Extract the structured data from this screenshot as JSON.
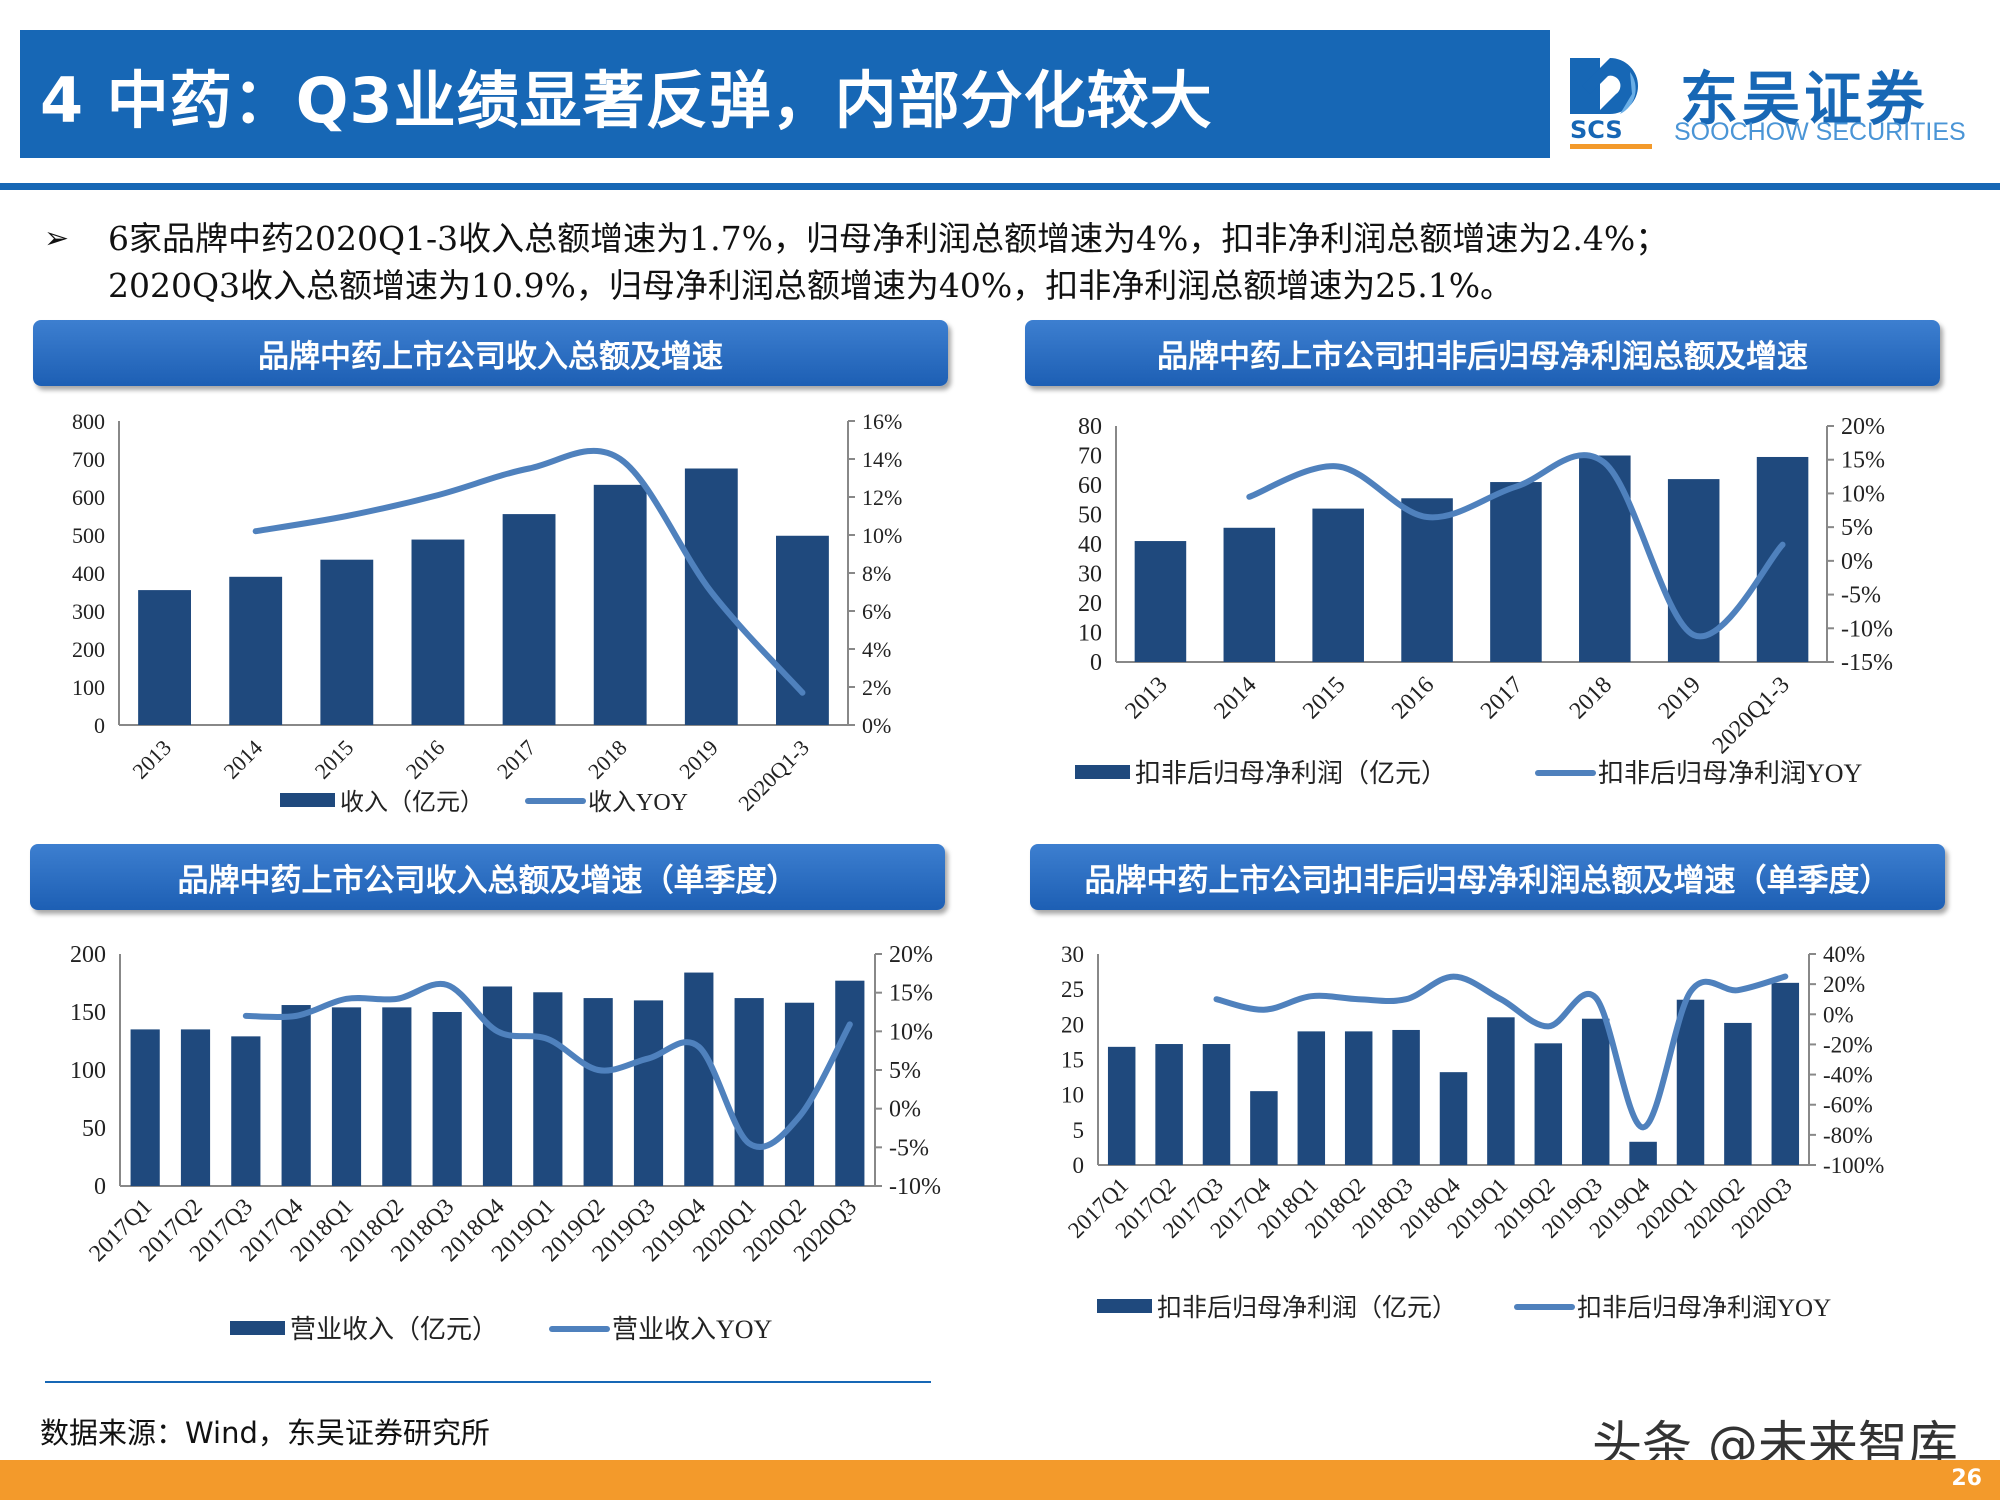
{
  "header": {
    "title": "4 中药：Q3业绩显著反弹，内部分化较大",
    "logo_cn": "东吴证券",
    "logo_en": "SOOCHOW SECURITIES",
    "logo_mark": "SCS",
    "color": "#1767b5"
  },
  "bullets": {
    "icon": "arrow-bullet-icon",
    "lines": [
      "6家品牌中药2020Q1-3收入总额增速为1.7%，归母净利润总额增速为4%，扣非净利润总额增速为2.4%；",
      "2020Q3收入总额增速为10.9%，归母净利润总额增速为40%，扣非净利润总额增速为25.1%。"
    ]
  },
  "chart_titles": [
    "品牌中药上市公司收入总额及增速",
    "品牌中药上市公司扣非后归母净利润总额及增速",
    "品牌中药上市公司收入总额及增速（单季度）",
    "品牌中药上市公司扣非后归母净利润总额及增速（单季度）"
  ],
  "colors": {
    "bar": "#1f497d",
    "line": "#4f81bd",
    "footer": "#f39a2b"
  },
  "chart_data": [
    {
      "type": "bar+line",
      "categories": [
        "2013",
        "2014",
        "2015",
        "2016",
        "2017",
        "2018",
        "2019",
        "2020Q1-3"
      ],
      "series": [
        {
          "name": "收入（亿元）",
          "type": "bar",
          "axis": "left",
          "values": [
            355,
            390,
            435,
            488,
            555,
            632,
            675,
            498
          ]
        },
        {
          "name": "收入YOY",
          "type": "line",
          "axis": "right",
          "values": [
            null,
            10.2,
            11.0,
            12.1,
            13.5,
            14.0,
            7.0,
            1.7
          ]
        }
      ],
      "ylim_left": [
        0,
        800
      ],
      "yticks_left": [
        "0",
        "100",
        "200",
        "300",
        "400",
        "500",
        "600",
        "700",
        "800"
      ],
      "ylim_right": [
        0,
        16
      ],
      "yticks_right": [
        "0%",
        "2%",
        "4%",
        "6%",
        "8%",
        "10%",
        "12%",
        "14%",
        "16%"
      ],
      "legend": "bottom",
      "grid": false
    },
    {
      "type": "bar+line",
      "categories": [
        "2013",
        "2014",
        "2015",
        "2016",
        "2017",
        "2018",
        "2019",
        "2020Q1-3"
      ],
      "series": [
        {
          "name": "扣非后归母净利润（亿元）",
          "type": "bar",
          "axis": "left",
          "values": [
            41,
            45.5,
            52,
            55.5,
            61,
            70,
            62,
            69.5
          ]
        },
        {
          "name": "扣非后归母净利润YOY",
          "type": "line",
          "axis": "right",
          "values": [
            null,
            9.5,
            14.0,
            6.5,
            11.0,
            14.5,
            -11.0,
            2.4
          ]
        }
      ],
      "ylim_left": [
        0,
        80
      ],
      "yticks_left": [
        "0",
        "10",
        "20",
        "30",
        "40",
        "50",
        "60",
        "70",
        "80"
      ],
      "ylim_right": [
        -15,
        20
      ],
      "yticks_right": [
        "-15%",
        "-10%",
        "-5%",
        "0%",
        "5%",
        "10%",
        "15%",
        "20%"
      ],
      "legend": "bottom",
      "grid": false
    },
    {
      "type": "bar+line",
      "categories": [
        "2017Q1",
        "2017Q2",
        "2017Q3",
        "2017Q4",
        "2018Q1",
        "2018Q2",
        "2018Q3",
        "2018Q4",
        "2019Q1",
        "2019Q2",
        "2019Q3",
        "2019Q4",
        "2020Q1",
        "2020Q2",
        "2020Q3"
      ],
      "series": [
        {
          "name": "营业收入（亿元）",
          "type": "bar",
          "axis": "left",
          "values": [
            135,
            135,
            129,
            156,
            154,
            154,
            150,
            172,
            167,
            162,
            160,
            184,
            162,
            158,
            177
          ]
        },
        {
          "name": "营业收入YOY",
          "type": "line",
          "axis": "right",
          "values": [
            null,
            null,
            12.0,
            12.0,
            14.2,
            14.2,
            16.0,
            10.0,
            9.0,
            5.0,
            6.5,
            8.0,
            -4.5,
            -1.0,
            10.9
          ]
        }
      ],
      "ylim_left": [
        0,
        200
      ],
      "yticks_left": [
        "0",
        "50",
        "100",
        "150",
        "200"
      ],
      "ylim_right": [
        -10,
        20
      ],
      "yticks_right": [
        "-10%",
        "-5%",
        "0%",
        "5%",
        "10%",
        "15%",
        "20%"
      ],
      "legend": "bottom",
      "grid": false
    },
    {
      "type": "bar+line",
      "categories": [
        "2017Q1",
        "2017Q2",
        "2017Q3",
        "2017Q4",
        "2018Q1",
        "2018Q2",
        "2018Q3",
        "2018Q4",
        "2019Q1",
        "2019Q2",
        "2019Q3",
        "2019Q4",
        "2020Q1",
        "2020Q2",
        "2020Q3"
      ],
      "series": [
        {
          "name": "扣非后归母净利润（亿元）",
          "type": "bar",
          "axis": "left",
          "values": [
            16.8,
            17.2,
            17.2,
            10.5,
            19.0,
            19.0,
            19.2,
            13.2,
            21.0,
            17.3,
            20.8,
            3.3,
            23.5,
            20.2,
            25.9
          ]
        },
        {
          "name": "扣非后归母净利润YOY",
          "type": "line",
          "axis": "right",
          "values": [
            null,
            null,
            10,
            3,
            12,
            10,
            10,
            25,
            10,
            -8,
            11,
            -75,
            15,
            16,
            25.1
          ]
        }
      ],
      "ylim_left": [
        0,
        30
      ],
      "yticks_left": [
        "0",
        "5",
        "10",
        "15",
        "20",
        "25",
        "30"
      ],
      "ylim_right": [
        -100,
        40
      ],
      "yticks_right": [
        "-100%",
        "-80%",
        "-60%",
        "-40%",
        "-20%",
        "0%",
        "20%",
        "40%"
      ],
      "legend": "bottom",
      "grid": false
    }
  ],
  "footer": {
    "source": "数据来源：Wind，东吴证券研究所",
    "watermark": "头条 @未来智库",
    "page_number": "26"
  }
}
